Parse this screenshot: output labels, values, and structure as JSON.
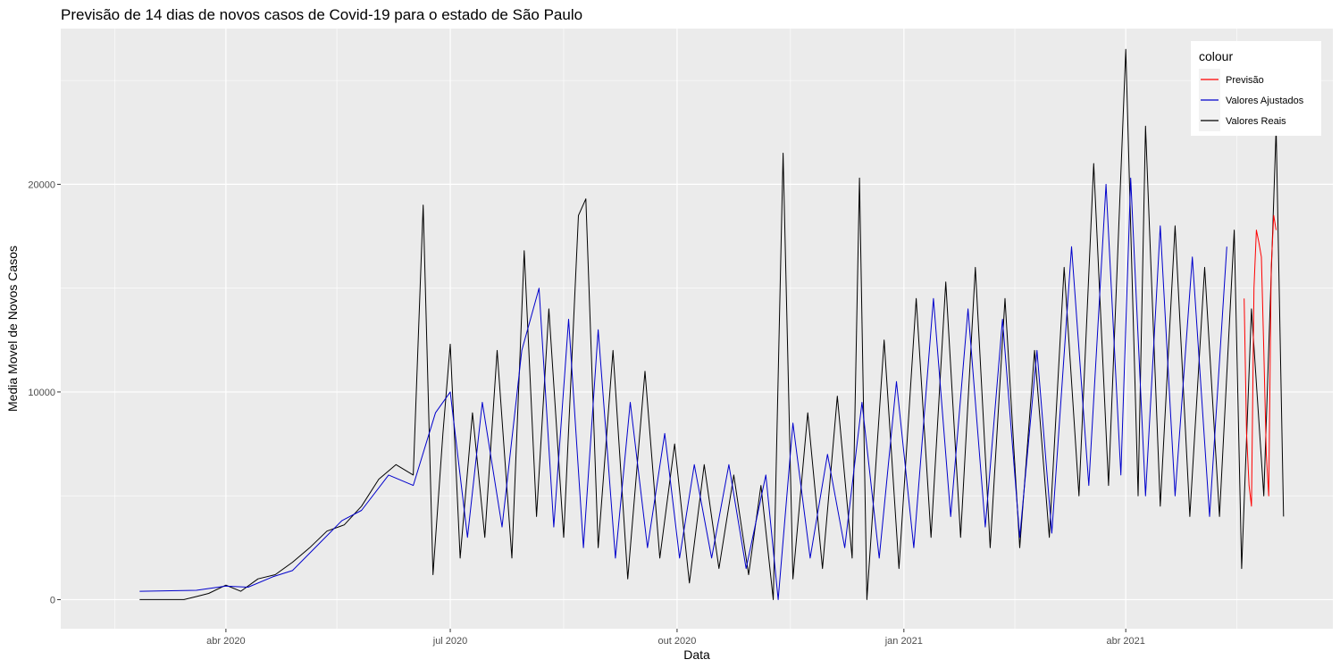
{
  "chart_data": {
    "type": "line",
    "title": "Previsão de 14 dias de novos casos de Covid-19 para o estado de São Paulo",
    "xlabel": "Data",
    "ylabel": "Media Movel de Novos Casos",
    "x_range": [
      "2020-01-25",
      "2021-06-24"
    ],
    "ylim": [
      -1400,
      27500
    ],
    "y_ticks": [
      0,
      10000,
      20000
    ],
    "y_tick_labels": [
      "0",
      "10000",
      "20000"
    ],
    "x_ticks": [
      "2020-04-01",
      "2020-07-01",
      "2020-10-01",
      "2021-01-01",
      "2021-04-01"
    ],
    "x_tick_labels": [
      "abr 2020",
      "jul 2020",
      "out 2020",
      "jan 2021",
      "abr 2021"
    ],
    "grid": true,
    "legend": {
      "title": "colour",
      "position": "right-inside-top",
      "entries": [
        {
          "label": "Previsão",
          "color": "#ff0000"
        },
        {
          "label": "Valores Ajustados",
          "color": "#0000cc"
        },
        {
          "label": "Valores Reais",
          "color": "#000000"
        }
      ]
    },
    "series": [
      {
        "name": "Valores Reais",
        "color": "#000000",
        "points": [
          [
            "2020-02-26",
            0
          ],
          [
            "2020-03-15",
            0
          ],
          [
            "2020-03-20",
            150
          ],
          [
            "2020-03-25",
            300
          ],
          [
            "2020-04-01",
            700
          ],
          [
            "2020-04-07",
            400
          ],
          [
            "2020-04-14",
            1000
          ],
          [
            "2020-04-21",
            1200
          ],
          [
            "2020-04-28",
            1800
          ],
          [
            "2020-05-05",
            2500
          ],
          [
            "2020-05-12",
            3300
          ],
          [
            "2020-05-19",
            3600
          ],
          [
            "2020-05-26",
            4500
          ],
          [
            "2020-06-02",
            5800
          ],
          [
            "2020-06-09",
            6500
          ],
          [
            "2020-06-16",
            6000
          ],
          [
            "2020-06-20",
            19000
          ],
          [
            "2020-06-24",
            1200
          ],
          [
            "2020-06-28",
            8000
          ],
          [
            "2020-07-01",
            12300
          ],
          [
            "2020-07-05",
            2000
          ],
          [
            "2020-07-10",
            9000
          ],
          [
            "2020-07-15",
            3000
          ],
          [
            "2020-07-20",
            12000
          ],
          [
            "2020-07-26",
            2000
          ],
          [
            "2020-07-31",
            16800
          ],
          [
            "2020-08-05",
            4000
          ],
          [
            "2020-08-10",
            14000
          ],
          [
            "2020-08-16",
            3000
          ],
          [
            "2020-08-22",
            18500
          ],
          [
            "2020-08-25",
            19300
          ],
          [
            "2020-08-30",
            2500
          ],
          [
            "2020-09-05",
            12000
          ],
          [
            "2020-09-11",
            1000
          ],
          [
            "2020-09-18",
            11000
          ],
          [
            "2020-09-24",
            2000
          ],
          [
            "2020-09-30",
            7500
          ],
          [
            "2020-10-06",
            800
          ],
          [
            "2020-10-12",
            6500
          ],
          [
            "2020-10-18",
            1500
          ],
          [
            "2020-10-24",
            6000
          ],
          [
            "2020-10-30",
            1200
          ],
          [
            "2020-11-04",
            5500
          ],
          [
            "2020-11-09",
            0
          ],
          [
            "2020-11-13",
            21500
          ],
          [
            "2020-11-17",
            1000
          ],
          [
            "2020-11-23",
            9000
          ],
          [
            "2020-11-29",
            1500
          ],
          [
            "2020-12-05",
            9800
          ],
          [
            "2020-12-11",
            2000
          ],
          [
            "2020-12-14",
            20300
          ],
          [
            "2020-12-17",
            0
          ],
          [
            "2020-12-24",
            12500
          ],
          [
            "2020-12-30",
            1500
          ],
          [
            "2021-01-06",
            14500
          ],
          [
            "2021-01-12",
            3000
          ],
          [
            "2021-01-18",
            15300
          ],
          [
            "2021-01-24",
            3000
          ],
          [
            "2021-01-30",
            16000
          ],
          [
            "2021-02-05",
            2500
          ],
          [
            "2021-02-11",
            14500
          ],
          [
            "2021-02-17",
            2500
          ],
          [
            "2021-02-23",
            12000
          ],
          [
            "2021-03-01",
            3000
          ],
          [
            "2021-03-07",
            16000
          ],
          [
            "2021-03-13",
            5000
          ],
          [
            "2021-03-19",
            21000
          ],
          [
            "2021-03-25",
            5500
          ],
          [
            "2021-04-01",
            26500
          ],
          [
            "2021-04-06",
            5000
          ],
          [
            "2021-04-09",
            22800
          ],
          [
            "2021-04-15",
            4500
          ],
          [
            "2021-04-21",
            18000
          ],
          [
            "2021-04-27",
            4000
          ],
          [
            "2021-05-03",
            16000
          ],
          [
            "2021-05-09",
            4000
          ],
          [
            "2021-05-15",
            17800
          ],
          [
            "2021-05-18",
            1500
          ],
          [
            "2021-05-22",
            14000
          ],
          [
            "2021-05-27",
            5000
          ],
          [
            "2021-06-01",
            22700
          ],
          [
            "2021-06-04",
            4000
          ]
        ]
      },
      {
        "name": "Valores Ajustados",
        "color": "#0000cc",
        "points": [
          [
            "2020-02-26",
            400
          ],
          [
            "2020-03-20",
            450
          ],
          [
            "2020-04-01",
            650
          ],
          [
            "2020-04-10",
            600
          ],
          [
            "2020-04-20",
            1100
          ],
          [
            "2020-04-28",
            1400
          ],
          [
            "2020-05-08",
            2600
          ],
          [
            "2020-05-18",
            3800
          ],
          [
            "2020-05-26",
            4300
          ],
          [
            "2020-06-06",
            6000
          ],
          [
            "2020-06-16",
            5500
          ],
          [
            "2020-06-25",
            9000
          ],
          [
            "2020-07-01",
            10000
          ],
          [
            "2020-07-08",
            3000
          ],
          [
            "2020-07-14",
            9500
          ],
          [
            "2020-07-22",
            3500
          ],
          [
            "2020-07-30",
            12000
          ],
          [
            "2020-08-06",
            15000
          ],
          [
            "2020-08-12",
            3500
          ],
          [
            "2020-08-18",
            13500
          ],
          [
            "2020-08-24",
            2500
          ],
          [
            "2020-08-30",
            13000
          ],
          [
            "2020-09-06",
            2000
          ],
          [
            "2020-09-12",
            9500
          ],
          [
            "2020-09-19",
            2500
          ],
          [
            "2020-09-26",
            8000
          ],
          [
            "2020-10-02",
            2000
          ],
          [
            "2020-10-08",
            6500
          ],
          [
            "2020-10-15",
            2000
          ],
          [
            "2020-10-22",
            6500
          ],
          [
            "2020-10-29",
            1500
          ],
          [
            "2020-11-06",
            6000
          ],
          [
            "2020-11-11",
            0
          ],
          [
            "2020-11-17",
            8500
          ],
          [
            "2020-11-24",
            2000
          ],
          [
            "2020-12-01",
            7000
          ],
          [
            "2020-12-08",
            2500
          ],
          [
            "2020-12-15",
            9500
          ],
          [
            "2020-12-22",
            2000
          ],
          [
            "2020-12-29",
            10500
          ],
          [
            "2021-01-05",
            2500
          ],
          [
            "2021-01-13",
            14500
          ],
          [
            "2021-01-20",
            4000
          ],
          [
            "2021-01-27",
            14000
          ],
          [
            "2021-02-03",
            3500
          ],
          [
            "2021-02-10",
            13500
          ],
          [
            "2021-02-17",
            3000
          ],
          [
            "2021-02-24",
            12000
          ],
          [
            "2021-03-02",
            3200
          ],
          [
            "2021-03-10",
            17000
          ],
          [
            "2021-03-17",
            5500
          ],
          [
            "2021-03-24",
            20000
          ],
          [
            "2021-03-30",
            6000
          ],
          [
            "2021-04-03",
            20300
          ],
          [
            "2021-04-09",
            5000
          ],
          [
            "2021-04-15",
            18000
          ],
          [
            "2021-04-21",
            5000
          ],
          [
            "2021-04-28",
            16500
          ],
          [
            "2021-05-05",
            4000
          ],
          [
            "2021-05-12",
            17000
          ]
        ]
      },
      {
        "name": "Previsão",
        "color": "#ff0000",
        "points": [
          [
            "2021-05-19",
            14500
          ],
          [
            "2021-05-20",
            8000
          ],
          [
            "2021-05-21",
            5500
          ],
          [
            "2021-05-22",
            4500
          ],
          [
            "2021-05-23",
            15000
          ],
          [
            "2021-05-24",
            17800
          ],
          [
            "2021-05-25",
            17200
          ],
          [
            "2021-05-26",
            16500
          ],
          [
            "2021-05-27",
            12000
          ],
          [
            "2021-05-28",
            7000
          ],
          [
            "2021-05-29",
            5000
          ],
          [
            "2021-05-30",
            16000
          ],
          [
            "2021-05-31",
            18500
          ],
          [
            "2021-06-01",
            17800
          ]
        ]
      }
    ]
  }
}
